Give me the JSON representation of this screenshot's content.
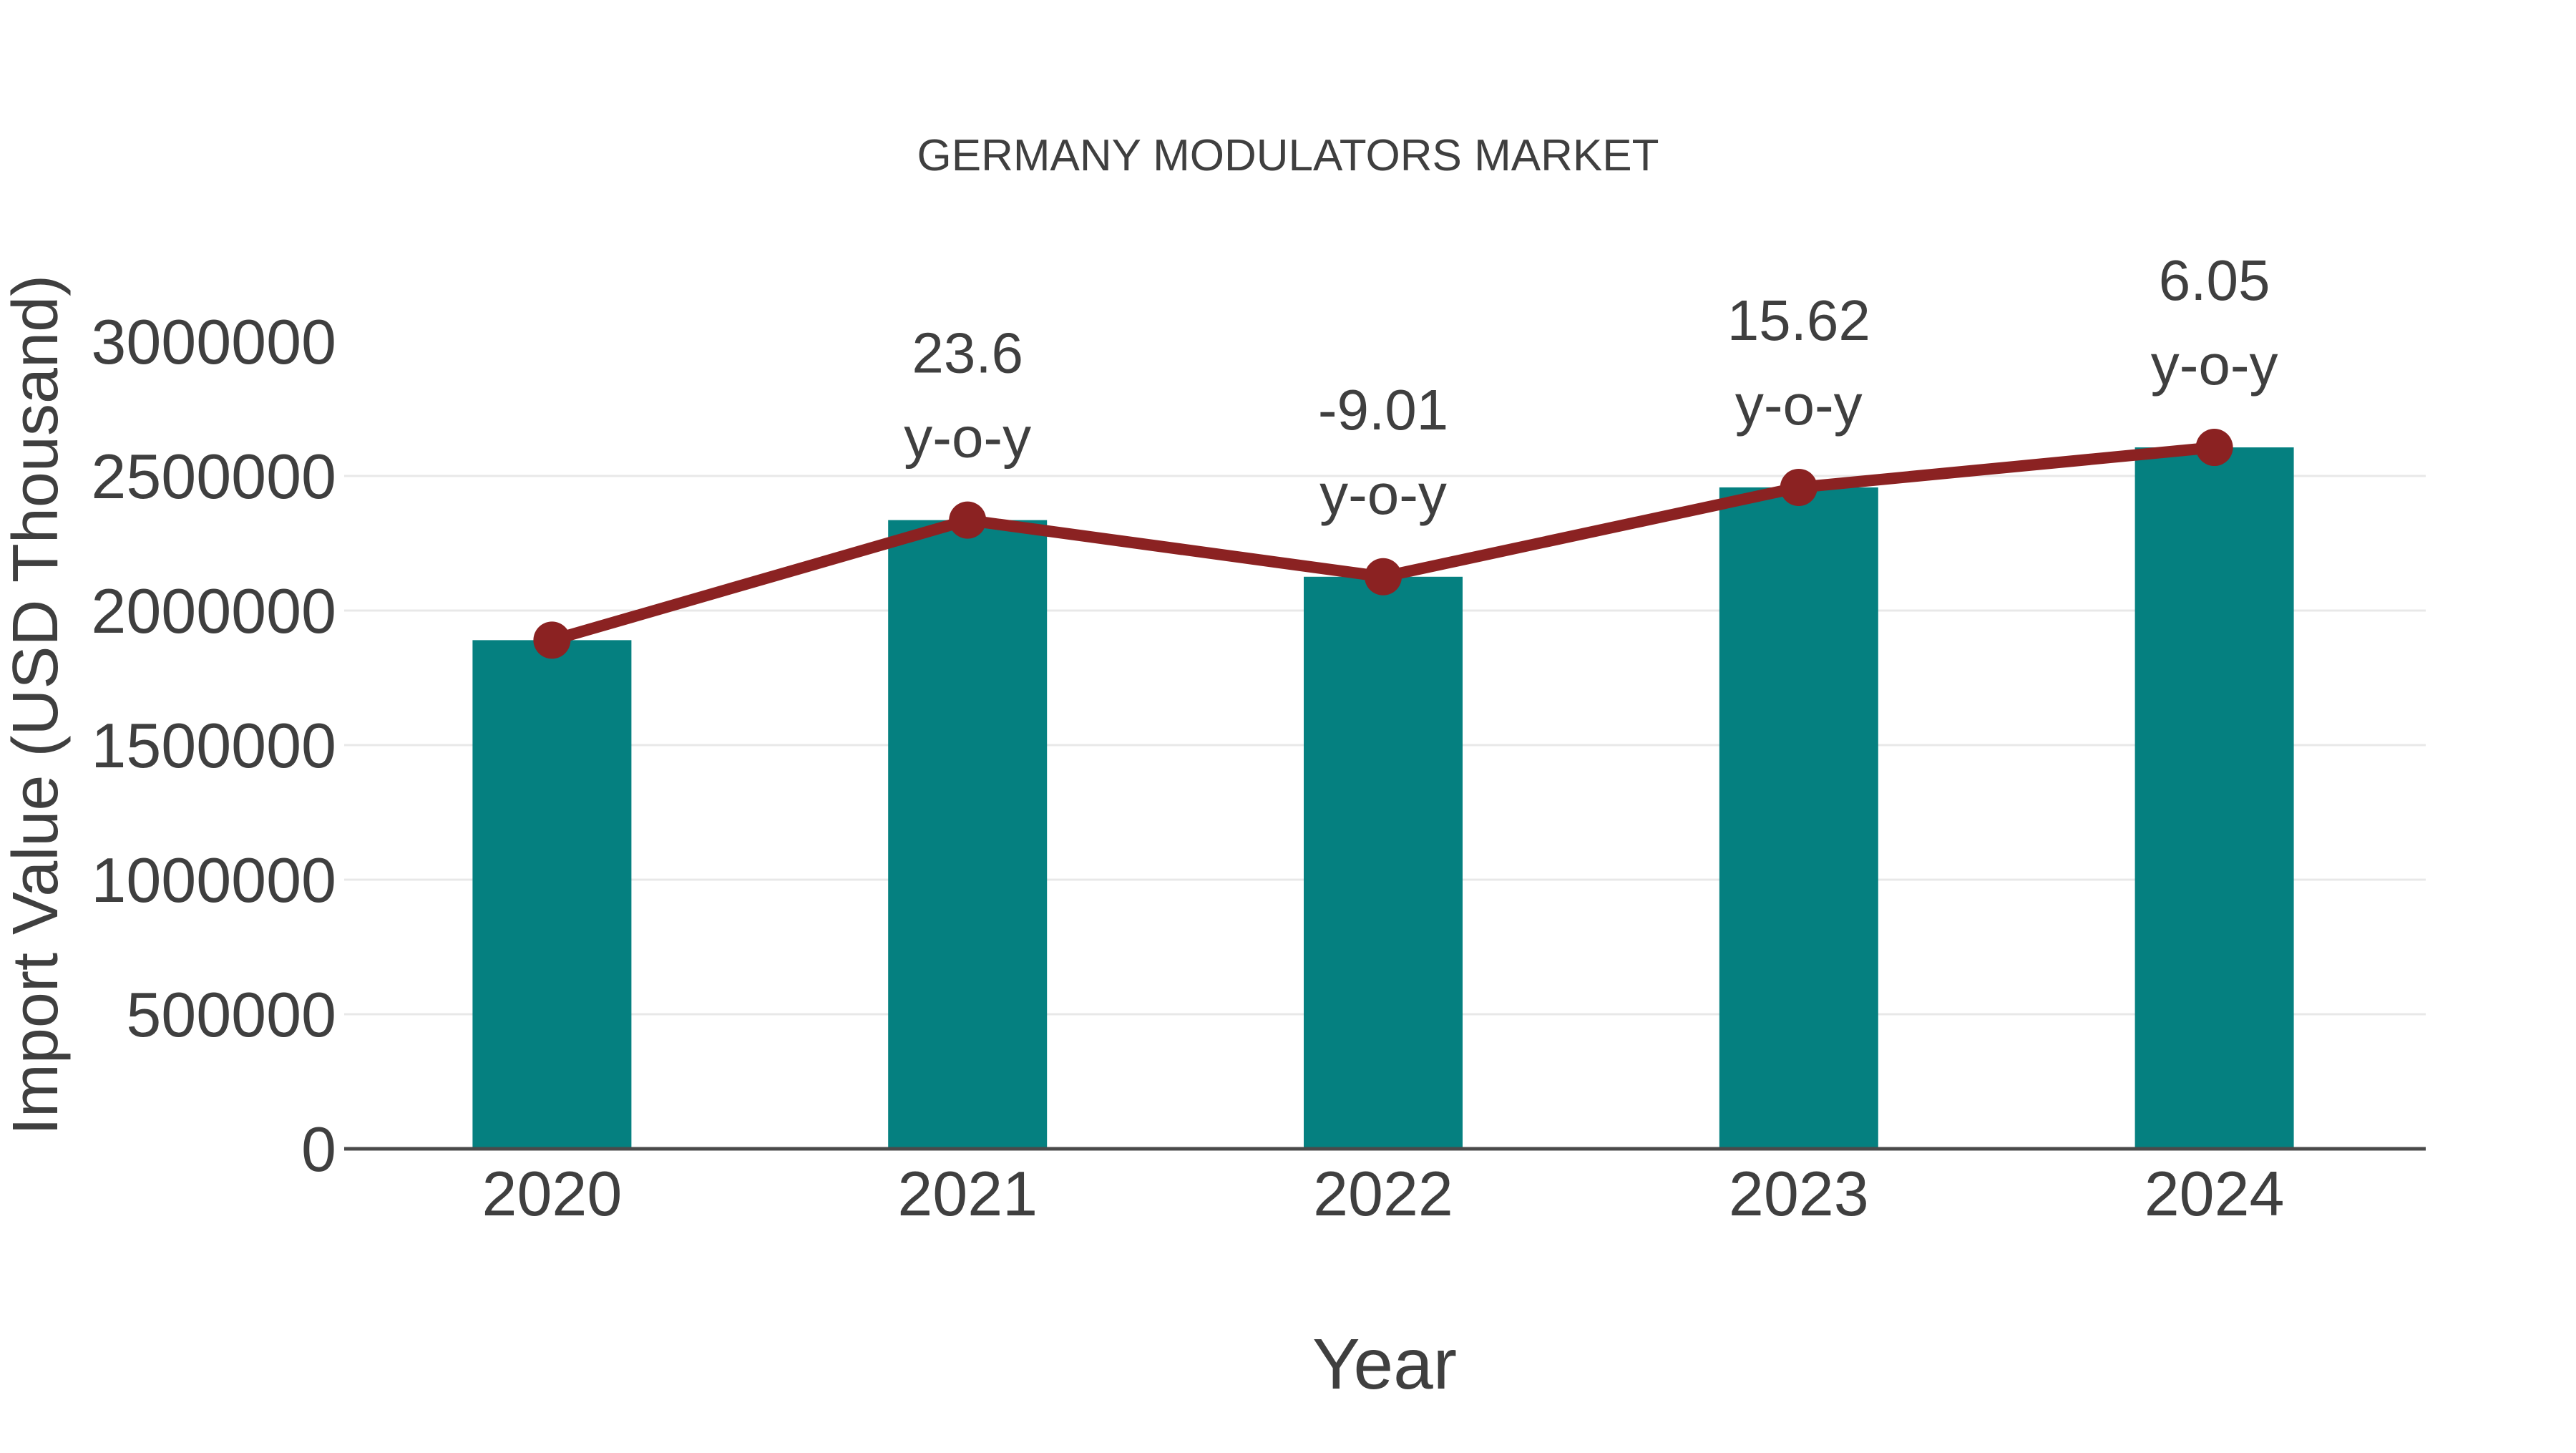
{
  "colors": {
    "background": "#ffffff",
    "bar": "#058080",
    "line": "#8b2222",
    "marker": "#8b2222",
    "text": "#3f3f3f",
    "gridline": "#e8e8e8",
    "axis_line": "#4a4a4a"
  },
  "chart_data": {
    "type": "bar",
    "title": "GERMANY MODULATORS MARKET",
    "xlabel": "Year",
    "ylabel": "Import Value (USD Thousand)",
    "categories": [
      "2020",
      "2021",
      "2022",
      "2023",
      "2024"
    ],
    "series": [
      {
        "name": "Import Value bars",
        "type": "bar",
        "values": [
          1890000,
          2336040,
          2125563,
          2457576,
          2606259
        ]
      },
      {
        "name": "Import Value trend line",
        "type": "line",
        "values": [
          1890000,
          2336040,
          2125563,
          2457576,
          2606259
        ]
      }
    ],
    "annotations": [
      {
        "category": "2021",
        "value_line": "23.6",
        "unit_line": "y-o-y"
      },
      {
        "category": "2022",
        "value_line": "-9.01",
        "unit_line": "y-o-y"
      },
      {
        "category": "2023",
        "value_line": "15.62",
        "unit_line": "y-o-y"
      },
      {
        "category": "2024",
        "value_line": "6.05",
        "unit_line": "y-o-y"
      }
    ],
    "y_ticks": [
      0,
      500000,
      1000000,
      1500000,
      2000000,
      2500000,
      3000000
    ],
    "ylim": [
      0,
      3000000
    ],
    "grid": true,
    "legend": false
  }
}
